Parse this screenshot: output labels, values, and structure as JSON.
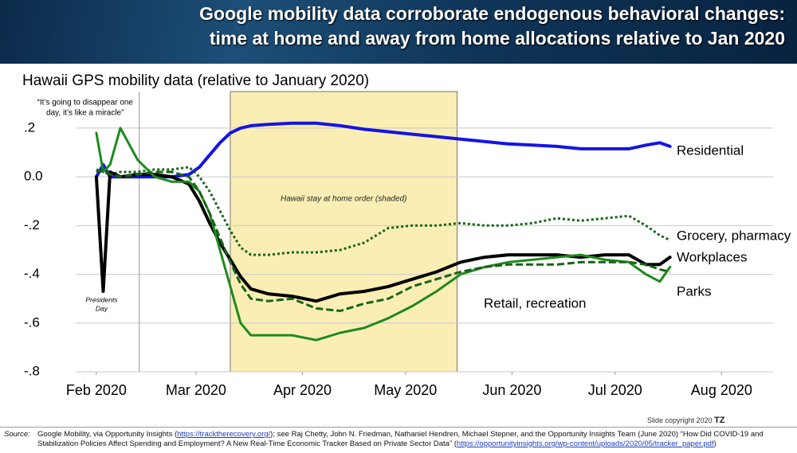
{
  "header": {
    "title_lines": [
      "Google mobility data corroborate endogenous behavioral changes:",
      "time at home and away from home allocations relative to Jan 2020"
    ]
  },
  "chart_data": {
    "type": "line",
    "title": "Hawaii GPS mobility data (relative to January 2020)",
    "x": [
      45,
      47,
      49,
      52,
      57,
      62,
      67,
      72,
      75,
      78,
      81,
      84,
      87,
      90,
      95,
      102,
      109,
      116,
      123,
      130,
      137,
      144,
      151,
      158,
      165,
      172,
      179,
      186,
      193,
      200,
      205,
      209,
      212
    ],
    "xlim": [
      39,
      242
    ],
    "xticks": [
      {
        "value": 45,
        "label": "Feb 2020"
      },
      {
        "value": 74,
        "label": "Mar 2020"
      },
      {
        "value": 105,
        "label": "Apr 2020"
      },
      {
        "value": 135,
        "label": "May 2020"
      },
      {
        "value": 166,
        "label": "Jun 2020"
      },
      {
        "value": 196,
        "label": "Jul 2020"
      },
      {
        "value": 227,
        "label": "Aug 2020"
      }
    ],
    "ylim": [
      -0.8,
      0.35
    ],
    "yticks": [
      {
        "value": 0.2,
        "label": ".2"
      },
      {
        "value": 0,
        "label": "0.0"
      },
      {
        "value": -0.2,
        "label": "-.2"
      },
      {
        "value": -0.4,
        "label": "-.4"
      },
      {
        "value": -0.6,
        "label": "-.6"
      },
      {
        "value": -0.8,
        "label": "-.8"
      }
    ],
    "grid": true,
    "shade": {
      "label": "Hawaii stay at home order (shaded)",
      "xlim": [
        84,
        150
      ],
      "color": "#fbeeb4"
    },
    "annotations": [
      {
        "lines": [
          "“It’s going to disappear one",
          "day, it’s like a miracle”"
        ],
        "x": 57.5
      },
      {
        "lines": [
          "Presidents",
          "Day"
        ],
        "x": 47
      }
    ],
    "series": [
      {
        "name": "Residential",
        "color": "#1414e6",
        "dash": "solid",
        "values": [
          0,
          0.05,
          0,
          0,
          0,
          0,
          0,
          0.01,
          0.04,
          0.09,
          0.14,
          0.18,
          0.2,
          0.21,
          0.215,
          0.22,
          0.22,
          0.21,
          0.195,
          0.185,
          0.175,
          0.165,
          0.155,
          0.145,
          0.135,
          0.13,
          0.125,
          0.115,
          0.115,
          0.115,
          0.13,
          0.14,
          0.125
        ]
      },
      {
        "name": "Grocery, pharmacy",
        "color": "#176417",
        "dash": "dotted",
        "values": [
          0.03,
          0.02,
          0.01,
          0.02,
          0.02,
          0.03,
          0.03,
          0.04,
          0,
          -0.06,
          -0.14,
          -0.22,
          -0.29,
          -0.32,
          -0.32,
          -0.31,
          -0.31,
          -0.3,
          -0.27,
          -0.21,
          -0.2,
          -0.2,
          -0.19,
          -0.2,
          -0.2,
          -0.19,
          -0.17,
          -0.18,
          -0.17,
          -0.16,
          -0.2,
          -0.24,
          -0.26
        ]
      },
      {
        "name": "Workplaces",
        "color": "#000000",
        "dash": "solid",
        "values": [
          0,
          -0.47,
          0.02,
          0,
          0.01,
          0.01,
          0,
          -0.03,
          -0.1,
          -0.19,
          -0.27,
          -0.34,
          -0.41,
          -0.46,
          -0.48,
          -0.49,
          -0.51,
          -0.48,
          -0.47,
          -0.45,
          -0.42,
          -0.39,
          -0.35,
          -0.33,
          -0.32,
          -0.32,
          -0.32,
          -0.33,
          -0.32,
          -0.32,
          -0.36,
          -0.36,
          -0.33
        ]
      },
      {
        "name": "Parks",
        "color": "#1d8a1d",
        "dash": "solid",
        "values": [
          0.18,
          0.02,
          0.05,
          0.2,
          0.07,
          0,
          -0.02,
          -0.02,
          -0.06,
          -0.15,
          -0.3,
          -0.45,
          -0.6,
          -0.65,
          -0.65,
          -0.65,
          -0.67,
          -0.64,
          -0.62,
          -0.58,
          -0.53,
          -0.47,
          -0.4,
          -0.37,
          -0.35,
          -0.34,
          -0.33,
          -0.32,
          -0.34,
          -0.35,
          -0.4,
          -0.43,
          -0.37
        ]
      },
      {
        "name": "Retail, recreation",
        "color": "#176417",
        "dash": "dashed",
        "values": [
          0.02,
          0.03,
          0.01,
          0,
          0.01,
          0.02,
          0.02,
          0,
          -0.06,
          -0.15,
          -0.25,
          -0.35,
          -0.44,
          -0.5,
          -0.51,
          -0.5,
          -0.54,
          -0.55,
          -0.52,
          -0.5,
          -0.45,
          -0.42,
          -0.39,
          -0.37,
          -0.36,
          -0.36,
          -0.36,
          -0.35,
          -0.35,
          -0.35,
          -0.36,
          -0.38,
          -0.39
        ]
      }
    ]
  },
  "footer": {
    "copyright": "Slide copyright 2020",
    "logo": "TZ",
    "source_label": "Source:",
    "source_parts": [
      {
        "text": "Google Mobility, via Opportunity Insights ("
      },
      {
        "link": "https://tracktherecovery.org/"
      },
      {
        "text": "); see Raj Chetty, John N. Friedman, Nathaniel Hendren, Michael Stepner, and the Opportunity Insights Team (June 2020) “How Did COVID-19 and Stabilization Policies Affect Spending and Employment? A New Real-Time Economic Tracker Based on Private Sector Data” ("
      },
      {
        "link": "https://opportunityinsights.org/wp-content/uploads/2020/05/tracker_paper.pdf"
      },
      {
        "text": ")"
      }
    ]
  }
}
